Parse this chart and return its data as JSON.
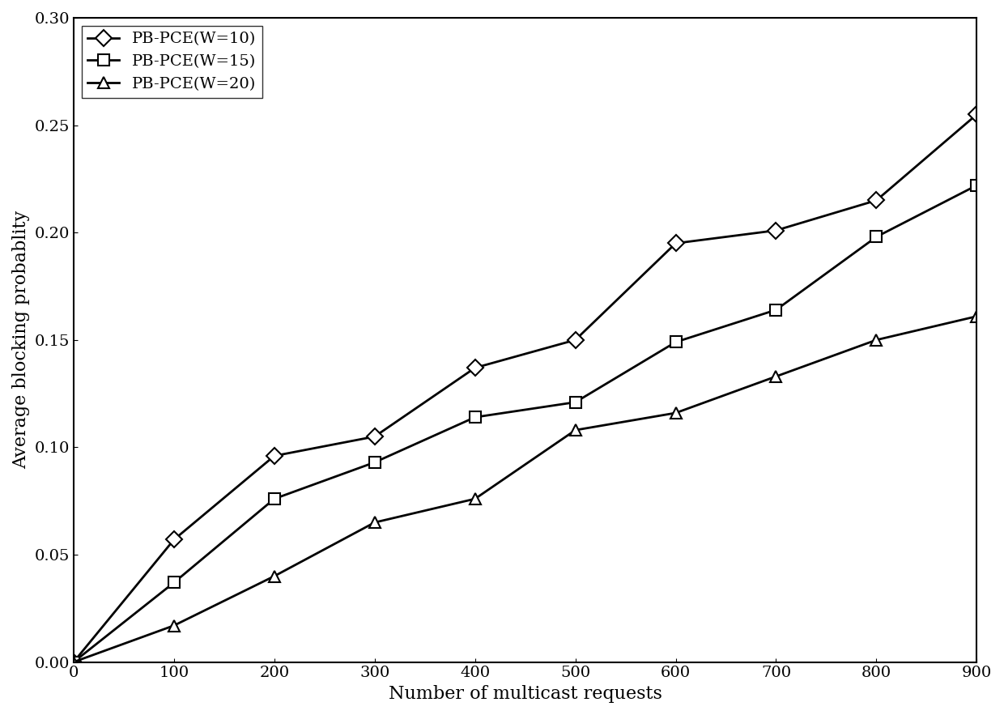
{
  "x": [
    0,
    100,
    200,
    300,
    400,
    500,
    600,
    700,
    800,
    900
  ],
  "w10": [
    0.0,
    0.057,
    0.096,
    0.105,
    0.137,
    0.15,
    0.195,
    0.201,
    0.215,
    0.255
  ],
  "w15": [
    0.0,
    0.037,
    0.076,
    0.093,
    0.114,
    0.121,
    0.149,
    0.164,
    0.198,
    0.222
  ],
  "w20": [
    0.0,
    0.017,
    0.04,
    0.065,
    0.076,
    0.108,
    0.116,
    0.133,
    0.15,
    0.161
  ],
  "xlabel": "Number of multicast requests",
  "ylabel": "Average blocking probablity",
  "legend": [
    "PB-PCE(W=10)",
    "PB-PCE(W=15)",
    "PB-PCE(W=20)"
  ],
  "markers": [
    "D",
    "s",
    "^"
  ],
  "line_color": "#000000",
  "xlim": [
    0,
    900
  ],
  "ylim": [
    0,
    0.3
  ],
  "xticks": [
    0,
    100,
    200,
    300,
    400,
    500,
    600,
    700,
    800,
    900
  ],
  "yticks": [
    0.0,
    0.05,
    0.1,
    0.15,
    0.2,
    0.25,
    0.3
  ],
  "background_color": "#ffffff",
  "fontsize_labels": 16,
  "fontsize_ticks": 14,
  "fontsize_legend": 14,
  "linewidth": 2.0,
  "markersize": 10
}
